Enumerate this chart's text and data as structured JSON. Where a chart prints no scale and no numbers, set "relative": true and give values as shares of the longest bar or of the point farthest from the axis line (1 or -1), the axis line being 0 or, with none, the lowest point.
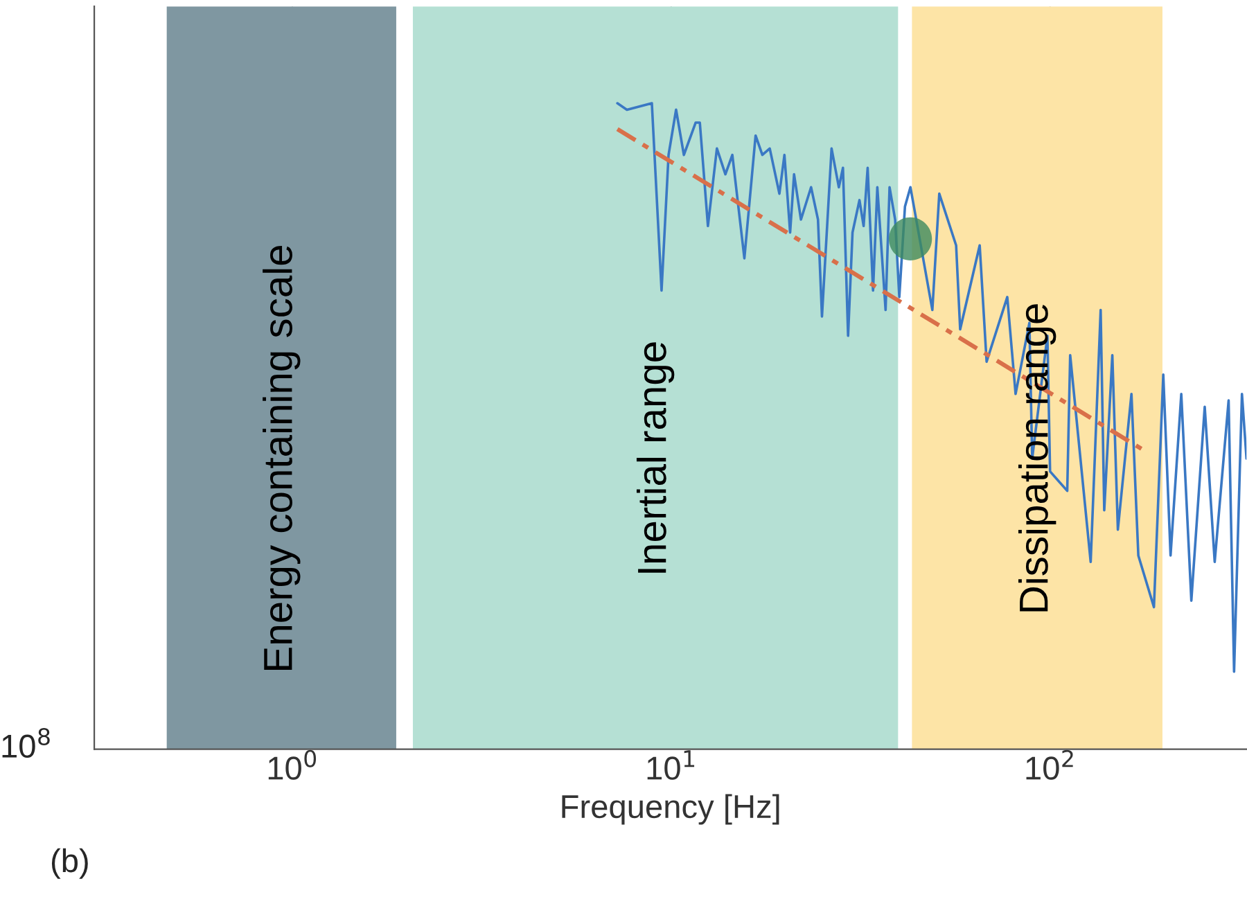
{
  "chart_data": {
    "type": "line",
    "relative": true,
    "log": "x",
    "xlabel": "Frequency [Hz]",
    "xlim": [
      0.3,
      330
    ],
    "xticks": [
      {
        "value": 1,
        "label": "10$^{0}$"
      },
      {
        "value": 10,
        "label": "10$^{1}$"
      },
      {
        "value": 100,
        "label": "10$^{2}$"
      }
    ],
    "grid": true,
    "legend": false,
    "series": [
      {
        "color": "#3a78c4",
        "x": [
          7.21,
          7.64,
          8.89,
          9.43,
          9.84,
          10.3,
          10.8,
          11.6,
          11.9,
          12.5,
          13.2,
          13.9,
          14.5,
          15.6,
          16.7,
          17.4,
          18.2,
          19.3,
          19.9,
          20.6,
          21.1,
          22.0,
          23.4,
          24.4,
          25.0,
          26.5,
          27.7,
          28.4,
          29.3,
          30.1,
          31.4,
          32.2,
          33.0,
          34.1,
          35.0,
          36.8,
          37.7,
          39.0,
          40.0,
          41.4,
          42.8,
          48.9,
          51.0,
          56.5,
          57.9,
          65.2,
          68.0,
          77.1,
          81.1,
          88.2,
          89.7,
          98.4,
          100,
          111,
          113,
          128,
          136,
          139,
          146,
          151,
          164,
          171,
          188,
          199,
          208,
          222,
          236,
          256,
          272,
          296,
          306,
          321,
          330
        ],
        "values": [
          1.0,
          0.99,
          1.0,
          0.71,
          0.92,
          0.99,
          0.92,
          0.97,
          0.97,
          0.81,
          0.93,
          0.89,
          0.92,
          0.76,
          0.95,
          0.92,
          0.93,
          0.86,
          0.92,
          0.8,
          0.89,
          0.82,
          0.87,
          0.82,
          0.67,
          0.93,
          0.87,
          0.9,
          0.64,
          0.8,
          0.85,
          0.81,
          0.9,
          0.71,
          0.87,
          0.68,
          0.87,
          0.82,
          0.7,
          0.84,
          0.87,
          0.68,
          0.86,
          0.78,
          0.65,
          0.78,
          0.6,
          0.7,
          0.55,
          0.66,
          0.45,
          0.64,
          0.43,
          0.4,
          0.61,
          0.29,
          0.68,
          0.37,
          0.61,
          0.34,
          0.55,
          0.3,
          0.22,
          0.58,
          0.3,
          0.55,
          0.23,
          0.53,
          0.29,
          0.54,
          0.12,
          0.55,
          0.45
        ]
      },
      {
        "type": "line",
        "color": "#d9704a",
        "line_style": "dashed",
        "x": [
          7.21,
          180
        ],
        "values": [
          0.96,
          0.46
        ]
      },
      {
        "type": "scatter",
        "color": "#3d8a5e",
        "marker": "circle",
        "x": [
          42.8
        ],
        "values": [
          0.79
        ]
      }
    ],
    "bands": [
      {
        "axis": "x",
        "from": 0.466,
        "to": 1.88,
        "label": "Energy containing scale",
        "color": "#7f97a1"
      },
      {
        "axis": "x",
        "from": 2.08,
        "to": 39.7,
        "label": "Inertial range",
        "color": "#b5e0d4"
      },
      {
        "axis": "x",
        "from": 43.2,
        "to": 198,
        "label": "Dissipation range",
        "color": "#fde4a6"
      }
    ],
    "annotations": [
      "10$^{8}$",
      "(b)"
    ]
  }
}
